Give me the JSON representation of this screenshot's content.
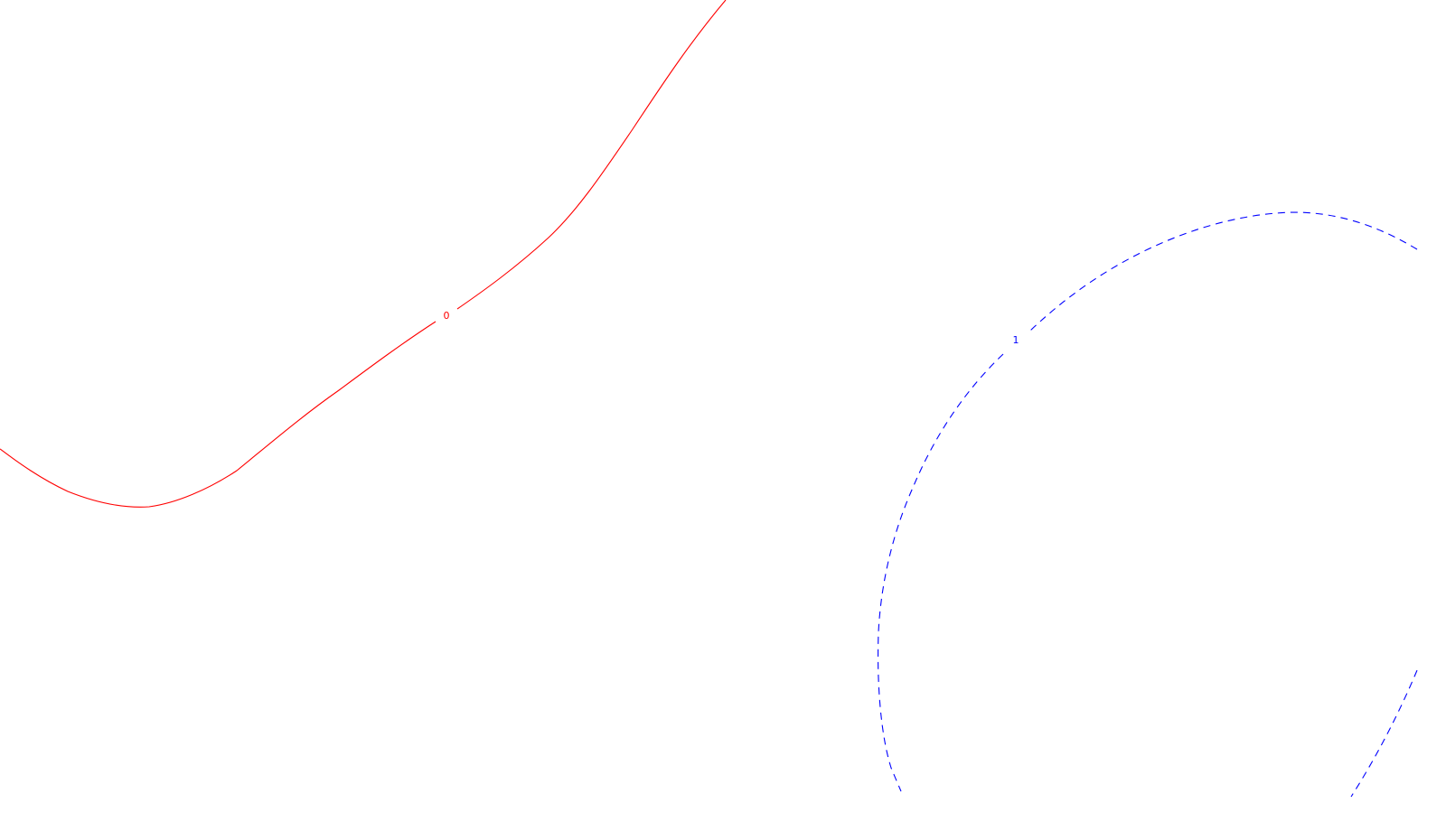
{
  "chart_data": {
    "type": "contour",
    "title": "",
    "xlabel": "",
    "ylabel": "",
    "grid": false,
    "legend": "none",
    "contours": [
      {
        "level": "0",
        "label": "0",
        "color": "#ff0000",
        "line_style": "solid"
      },
      {
        "level": "1",
        "label": "1",
        "color": "#0000ff",
        "line_style": "dashed"
      }
    ]
  }
}
